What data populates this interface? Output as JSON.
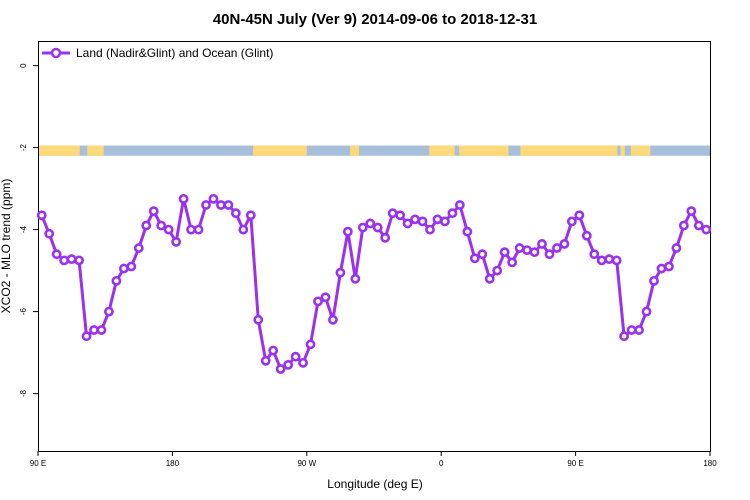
{
  "chart_data": {
    "type": "line",
    "title": "40N-45N July (Ver 9)   2014-09-06 to 2018-12-31",
    "xlabel": "Longitude (deg E)",
    "ylabel": "XCO2 - MLO trend (ppm)",
    "xlim": [
      90,
      540
    ],
    "ylim": [
      -9.4,
      0.6
    ],
    "x_ticks": [
      {
        "value": 90,
        "label": "90 E"
      },
      {
        "value": 180,
        "label": "180"
      },
      {
        "value": 270,
        "label": "90 W"
      },
      {
        "value": 360,
        "label": "0"
      },
      {
        "value": 450,
        "label": "90 E"
      },
      {
        "value": 540,
        "label": "180"
      }
    ],
    "y_ticks": [
      {
        "value": 0,
        "label": "0"
      },
      {
        "value": -2,
        "label": "-2"
      },
      {
        "value": -4,
        "label": "-4"
      },
      {
        "value": -6,
        "label": "-6"
      },
      {
        "value": -8,
        "label": "-8"
      }
    ],
    "legend": {
      "position": "top-left",
      "entries": [
        {
          "name": "Land (Nadir&Glint) and Ocean (Glint)",
          "color": "#9b30f0"
        }
      ]
    },
    "land_ocean_band": {
      "y_range": [
        -2.2,
        -1.95
      ],
      "land_color": "#fcd97a",
      "ocean_color": "#a8bfdc",
      "land_segments": [
        [
          90,
          118
        ],
        [
          123,
          134
        ],
        [
          234,
          270
        ],
        [
          299,
          305
        ],
        [
          352,
          369
        ],
        [
          372,
          405
        ],
        [
          413,
          478
        ],
        [
          480,
          483
        ],
        [
          487,
          500
        ]
      ]
    },
    "series": [
      {
        "name": "Land (Nadir&Glint) and Ocean (Glint)",
        "color": "#9b30f0",
        "x": [
          92.5,
          97.5,
          102.5,
          107.5,
          112.5,
          117.5,
          122.5,
          127.5,
          132.5,
          137.5,
          142.5,
          147.5,
          152.5,
          157.5,
          162.5,
          167.5,
          172.5,
          177.5,
          182.5,
          187.5,
          192.5,
          197.5,
          202.5,
          207.5,
          212.5,
          217.5,
          222.5,
          227.5,
          232.5,
          237.5,
          242.5,
          247.5,
          252.5,
          257.5,
          262.5,
          267.5,
          272.5,
          277.5,
          282.5,
          287.5,
          292.5,
          297.5,
          302.5,
          307.5,
          312.5,
          317.5,
          322.5,
          327.5,
          332.5,
          337.5,
          342.5,
          347.5,
          352.5,
          357.5,
          362.5,
          367.5,
          372.5,
          377.5,
          382.5,
          387.5,
          392.5,
          397.5,
          402.5,
          407.5,
          412.5,
          417.5,
          422.5,
          427.5,
          432.5,
          437.5,
          442.5,
          447.5,
          452.5,
          457.5,
          462.5,
          467.5,
          472.5,
          477.5,
          482.5,
          487.5,
          492.5,
          497.5,
          502.5,
          507.5,
          512.5,
          517.5,
          522.5,
          527.5,
          532.5,
          537.5
        ],
        "values": [
          -3.65,
          -4.1,
          -4.6,
          -4.75,
          -4.72,
          -4.75,
          -6.6,
          -6.45,
          -6.45,
          -6.0,
          -5.25,
          -4.95,
          -4.9,
          -4.45,
          -3.9,
          -3.55,
          -3.9,
          -4.0,
          -4.3,
          -3.25,
          -4.0,
          -4.0,
          -3.4,
          -3.25,
          -3.4,
          -3.4,
          -3.6,
          -4.0,
          -3.65,
          -6.2,
          -7.2,
          -6.95,
          -7.4,
          -7.3,
          -7.1,
          -7.25,
          -6.8,
          -5.75,
          -5.65,
          -6.2,
          -5.05,
          -4.05,
          -5.2,
          -3.95,
          -3.85,
          -3.95,
          -4.2,
          -3.6,
          -3.65,
          -3.85,
          -3.75,
          -3.8,
          -4.0,
          -3.75,
          -3.8,
          -3.6,
          -3.4,
          -4.05,
          -4.7,
          -4.6,
          -5.2,
          -5.0,
          -4.55,
          -4.8,
          -4.45,
          -4.5,
          -4.55,
          -4.35,
          -4.6,
          -4.45,
          -4.35,
          -3.8,
          -3.65,
          -4.15,
          -4.6,
          -4.75,
          -4.72,
          -4.75,
          -6.6,
          -6.45,
          -6.45,
          -6.0,
          -5.25,
          -4.95,
          -4.9,
          -4.45,
          -3.9,
          -3.55,
          -3.9,
          -4.0
        ]
      }
    ]
  }
}
